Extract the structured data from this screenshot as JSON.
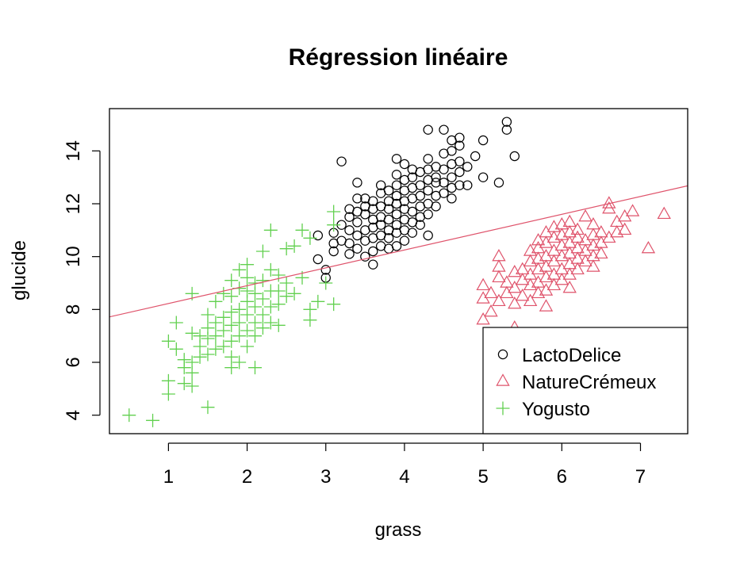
{
  "chart_data": {
    "type": "scatter",
    "title": "Régression linéaire",
    "xlabel": "grass",
    "ylabel": "glucide",
    "xlim": [
      0.25,
      7.6
    ],
    "ylim": [
      3.3,
      15.6
    ],
    "xticks": [
      1,
      2,
      3,
      4,
      5,
      6,
      7
    ],
    "yticks": [
      4,
      6,
      8,
      10,
      12,
      14
    ],
    "grid": false,
    "legend_position": "bottom-right",
    "regression_line": {
      "intercept": 7.55,
      "slope": 0.675,
      "color": "#DF536B"
    },
    "series": [
      {
        "name": "LactoDelice",
        "marker": "circle",
        "color": "#000000",
        "points": [
          [
            2.9,
            9.9
          ],
          [
            2.9,
            10.8
          ],
          [
            3.0,
            9.2
          ],
          [
            3.0,
            9.5
          ],
          [
            3.1,
            10.2
          ],
          [
            3.1,
            10.5
          ],
          [
            3.1,
            10.9
          ],
          [
            3.2,
            10.6
          ],
          [
            3.2,
            11.2
          ],
          [
            3.2,
            13.6
          ],
          [
            3.3,
            10.1
          ],
          [
            3.3,
            10.5
          ],
          [
            3.3,
            11.0
          ],
          [
            3.3,
            11.5
          ],
          [
            3.3,
            11.8
          ],
          [
            3.4,
            10.3
          ],
          [
            3.4,
            10.8
          ],
          [
            3.4,
            11.3
          ],
          [
            3.4,
            11.7
          ],
          [
            3.4,
            12.2
          ],
          [
            3.4,
            12.8
          ],
          [
            3.5,
            10.0
          ],
          [
            3.5,
            10.6
          ],
          [
            3.5,
            11.0
          ],
          [
            3.5,
            11.6
          ],
          [
            3.5,
            11.9
          ],
          [
            3.5,
            12.2
          ],
          [
            3.6,
            9.7
          ],
          [
            3.6,
            10.2
          ],
          [
            3.6,
            10.7
          ],
          [
            3.6,
            11.1
          ],
          [
            3.6,
            11.4
          ],
          [
            3.6,
            11.8
          ],
          [
            3.6,
            12.1
          ],
          [
            3.7,
            10.4
          ],
          [
            3.7,
            10.8
          ],
          [
            3.7,
            11.2
          ],
          [
            3.7,
            11.5
          ],
          [
            3.7,
            11.9
          ],
          [
            3.7,
            12.4
          ],
          [
            3.7,
            12.7
          ],
          [
            3.8,
            10.3
          ],
          [
            3.8,
            10.7
          ],
          [
            3.8,
            11.0
          ],
          [
            3.8,
            11.4
          ],
          [
            3.8,
            11.8
          ],
          [
            3.8,
            12.1
          ],
          [
            3.8,
            12.5
          ],
          [
            3.9,
            10.4
          ],
          [
            3.9,
            10.9
          ],
          [
            3.9,
            11.2
          ],
          [
            3.9,
            11.6
          ],
          [
            3.9,
            12.0
          ],
          [
            3.9,
            12.3
          ],
          [
            3.9,
            12.7
          ],
          [
            3.9,
            13.1
          ],
          [
            3.9,
            13.7
          ],
          [
            4.0,
            10.6
          ],
          [
            4.0,
            11.0
          ],
          [
            4.0,
            11.4
          ],
          [
            4.0,
            11.8
          ],
          [
            4.0,
            12.1
          ],
          [
            4.0,
            12.5
          ],
          [
            4.0,
            12.9
          ],
          [
            4.0,
            13.5
          ],
          [
            4.1,
            10.9
          ],
          [
            4.1,
            11.3
          ],
          [
            4.1,
            11.7
          ],
          [
            4.1,
            12.2
          ],
          [
            4.1,
            12.6
          ],
          [
            4.1,
            13.0
          ],
          [
            4.1,
            13.3
          ],
          [
            4.2,
            11.2
          ],
          [
            4.2,
            11.5
          ],
          [
            4.2,
            11.9
          ],
          [
            4.2,
            12.3
          ],
          [
            4.2,
            12.7
          ],
          [
            4.2,
            13.2
          ],
          [
            4.3,
            10.8
          ],
          [
            4.3,
            11.6
          ],
          [
            4.3,
            12.0
          ],
          [
            4.3,
            12.5
          ],
          [
            4.3,
            12.9
          ],
          [
            4.3,
            13.3
          ],
          [
            4.3,
            13.7
          ],
          [
            4.3,
            14.8
          ],
          [
            4.4,
            11.9
          ],
          [
            4.4,
            12.3
          ],
          [
            4.4,
            12.8
          ],
          [
            4.4,
            13.0
          ],
          [
            4.4,
            13.4
          ],
          [
            4.5,
            12.4
          ],
          [
            4.5,
            12.8
          ],
          [
            4.5,
            13.3
          ],
          [
            4.5,
            13.9
          ],
          [
            4.5,
            14.8
          ],
          [
            4.6,
            12.2
          ],
          [
            4.6,
            12.6
          ],
          [
            4.6,
            13.0
          ],
          [
            4.6,
            13.5
          ],
          [
            4.6,
            14.0
          ],
          [
            4.6,
            14.4
          ],
          [
            4.7,
            12.7
          ],
          [
            4.7,
            13.2
          ],
          [
            4.7,
            13.6
          ],
          [
            4.7,
            14.2
          ],
          [
            4.7,
            14.5
          ],
          [
            4.8,
            12.7
          ],
          [
            4.8,
            13.4
          ],
          [
            4.9,
            13.8
          ],
          [
            5.0,
            13.0
          ],
          [
            5.0,
            14.4
          ],
          [
            5.2,
            12.8
          ],
          [
            5.3,
            14.8
          ],
          [
            5.3,
            15.1
          ],
          [
            5.4,
            13.8
          ]
        ]
      },
      {
        "name": "NatureCrémeux",
        "marker": "triangle",
        "color": "#DF536B",
        "points": [
          [
            5.0,
            7.6
          ],
          [
            5.0,
            8.4
          ],
          [
            5.0,
            8.9
          ],
          [
            5.1,
            7.9
          ],
          [
            5.1,
            8.6
          ],
          [
            5.2,
            8.3
          ],
          [
            5.2,
            9.2
          ],
          [
            5.2,
            9.6
          ],
          [
            5.2,
            10.0
          ],
          [
            5.3,
            8.6
          ],
          [
            5.3,
            9.0
          ],
          [
            5.4,
            7.3
          ],
          [
            5.4,
            8.2
          ],
          [
            5.4,
            8.8
          ],
          [
            5.4,
            9.4
          ],
          [
            5.5,
            8.5
          ],
          [
            5.5,
            9.1
          ],
          [
            5.5,
            9.5
          ],
          [
            5.6,
            8.3
          ],
          [
            5.6,
            8.9
          ],
          [
            5.6,
            9.3
          ],
          [
            5.6,
            9.8
          ],
          [
            5.6,
            10.2
          ],
          [
            5.7,
            8.6
          ],
          [
            5.7,
            9.0
          ],
          [
            5.7,
            9.5
          ],
          [
            5.7,
            9.9
          ],
          [
            5.7,
            10.3
          ],
          [
            5.7,
            10.6
          ],
          [
            5.8,
            8.1
          ],
          [
            5.8,
            8.7
          ],
          [
            5.8,
            9.2
          ],
          [
            5.8,
            9.6
          ],
          [
            5.8,
            10.0
          ],
          [
            5.8,
            10.5
          ],
          [
            5.8,
            10.9
          ],
          [
            5.9,
            8.9
          ],
          [
            5.9,
            9.3
          ],
          [
            5.9,
            9.8
          ],
          [
            5.9,
            10.2
          ],
          [
            5.9,
            10.7
          ],
          [
            5.9,
            11.1
          ],
          [
            6.0,
            9.1
          ],
          [
            6.0,
            9.5
          ],
          [
            6.0,
            10.0
          ],
          [
            6.0,
            10.4
          ],
          [
            6.0,
            10.8
          ],
          [
            6.0,
            11.2
          ],
          [
            6.1,
            8.8
          ],
          [
            6.1,
            9.3
          ],
          [
            6.1,
            9.7
          ],
          [
            6.1,
            10.1
          ],
          [
            6.1,
            10.5
          ],
          [
            6.1,
            10.9
          ],
          [
            6.1,
            11.3
          ],
          [
            6.2,
            9.5
          ],
          [
            6.2,
            9.9
          ],
          [
            6.2,
            10.3
          ],
          [
            6.2,
            10.7
          ],
          [
            6.2,
            11.0
          ],
          [
            6.3,
            9.8
          ],
          [
            6.3,
            10.2
          ],
          [
            6.3,
            10.6
          ],
          [
            6.3,
            11.5
          ],
          [
            6.4,
            9.6
          ],
          [
            6.4,
            10.0
          ],
          [
            6.4,
            10.4
          ],
          [
            6.4,
            10.8
          ],
          [
            6.4,
            11.2
          ],
          [
            6.5,
            10.1
          ],
          [
            6.5,
            10.5
          ],
          [
            6.5,
            10.9
          ],
          [
            6.6,
            10.7
          ],
          [
            6.6,
            11.8
          ],
          [
            6.6,
            12.0
          ],
          [
            6.7,
            10.9
          ],
          [
            6.7,
            11.3
          ],
          [
            6.8,
            11.0
          ],
          [
            6.8,
            11.5
          ],
          [
            6.9,
            11.7
          ],
          [
            7.1,
            10.3
          ],
          [
            7.3,
            11.6
          ]
        ]
      },
      {
        "name": "Yogusto",
        "marker": "plus",
        "color": "#61D04F",
        "points": [
          [
            0.5,
            4.0
          ],
          [
            0.8,
            3.8
          ],
          [
            1.0,
            4.8
          ],
          [
            1.0,
            5.3
          ],
          [
            1.0,
            6.8
          ],
          [
            1.1,
            6.5
          ],
          [
            1.1,
            7.5
          ],
          [
            1.2,
            5.2
          ],
          [
            1.2,
            5.8
          ],
          [
            1.2,
            6.1
          ],
          [
            1.3,
            5.1
          ],
          [
            1.3,
            5.6
          ],
          [
            1.3,
            6.0
          ],
          [
            1.3,
            7.1
          ],
          [
            1.3,
            8.6
          ],
          [
            1.4,
            6.2
          ],
          [
            1.4,
            6.6
          ],
          [
            1.4,
            7.0
          ],
          [
            1.5,
            4.3
          ],
          [
            1.5,
            6.3
          ],
          [
            1.5,
            6.9
          ],
          [
            1.5,
            7.3
          ],
          [
            1.5,
            7.8
          ],
          [
            1.6,
            6.5
          ],
          [
            1.6,
            7.0
          ],
          [
            1.6,
            7.5
          ],
          [
            1.6,
            8.3
          ],
          [
            1.7,
            6.6
          ],
          [
            1.7,
            7.2
          ],
          [
            1.7,
            7.7
          ],
          [
            1.7,
            8.6
          ],
          [
            1.8,
            5.8
          ],
          [
            1.8,
            6.2
          ],
          [
            1.8,
            6.8
          ],
          [
            1.8,
            7.4
          ],
          [
            1.8,
            7.9
          ],
          [
            1.8,
            8.5
          ],
          [
            1.8,
            9.1
          ],
          [
            1.9,
            6.0
          ],
          [
            1.9,
            7.0
          ],
          [
            1.9,
            7.5
          ],
          [
            1.9,
            8.0
          ],
          [
            1.9,
            8.8
          ],
          [
            1.9,
            9.5
          ],
          [
            2.0,
            6.6
          ],
          [
            2.0,
            7.2
          ],
          [
            2.0,
            7.8
          ],
          [
            2.0,
            8.3
          ],
          [
            2.0,
            8.7
          ],
          [
            2.0,
            9.2
          ],
          [
            2.0,
            9.7
          ],
          [
            2.1,
            5.8
          ],
          [
            2.1,
            7.0
          ],
          [
            2.1,
            7.5
          ],
          [
            2.1,
            8.1
          ],
          [
            2.1,
            8.6
          ],
          [
            2.1,
            9.0
          ],
          [
            2.2,
            7.3
          ],
          [
            2.2,
            7.8
          ],
          [
            2.2,
            8.4
          ],
          [
            2.2,
            9.1
          ],
          [
            2.2,
            10.2
          ],
          [
            2.3,
            7.5
          ],
          [
            2.3,
            8.1
          ],
          [
            2.3,
            8.7
          ],
          [
            2.3,
            9.5
          ],
          [
            2.3,
            11.0
          ],
          [
            2.4,
            7.4
          ],
          [
            2.4,
            8.2
          ],
          [
            2.4,
            8.7
          ],
          [
            2.4,
            9.3
          ],
          [
            2.5,
            8.5
          ],
          [
            2.5,
            9.0
          ],
          [
            2.5,
            10.3
          ],
          [
            2.6,
            8.6
          ],
          [
            2.6,
            10.4
          ],
          [
            2.7,
            9.2
          ],
          [
            2.7,
            11.0
          ],
          [
            2.8,
            7.6
          ],
          [
            2.8,
            8.0
          ],
          [
            2.8,
            10.7
          ],
          [
            2.9,
            8.3
          ],
          [
            3.0,
            9.0
          ],
          [
            3.1,
            8.2
          ],
          [
            3.1,
            11.2
          ],
          [
            3.1,
            11.7
          ]
        ]
      }
    ]
  }
}
